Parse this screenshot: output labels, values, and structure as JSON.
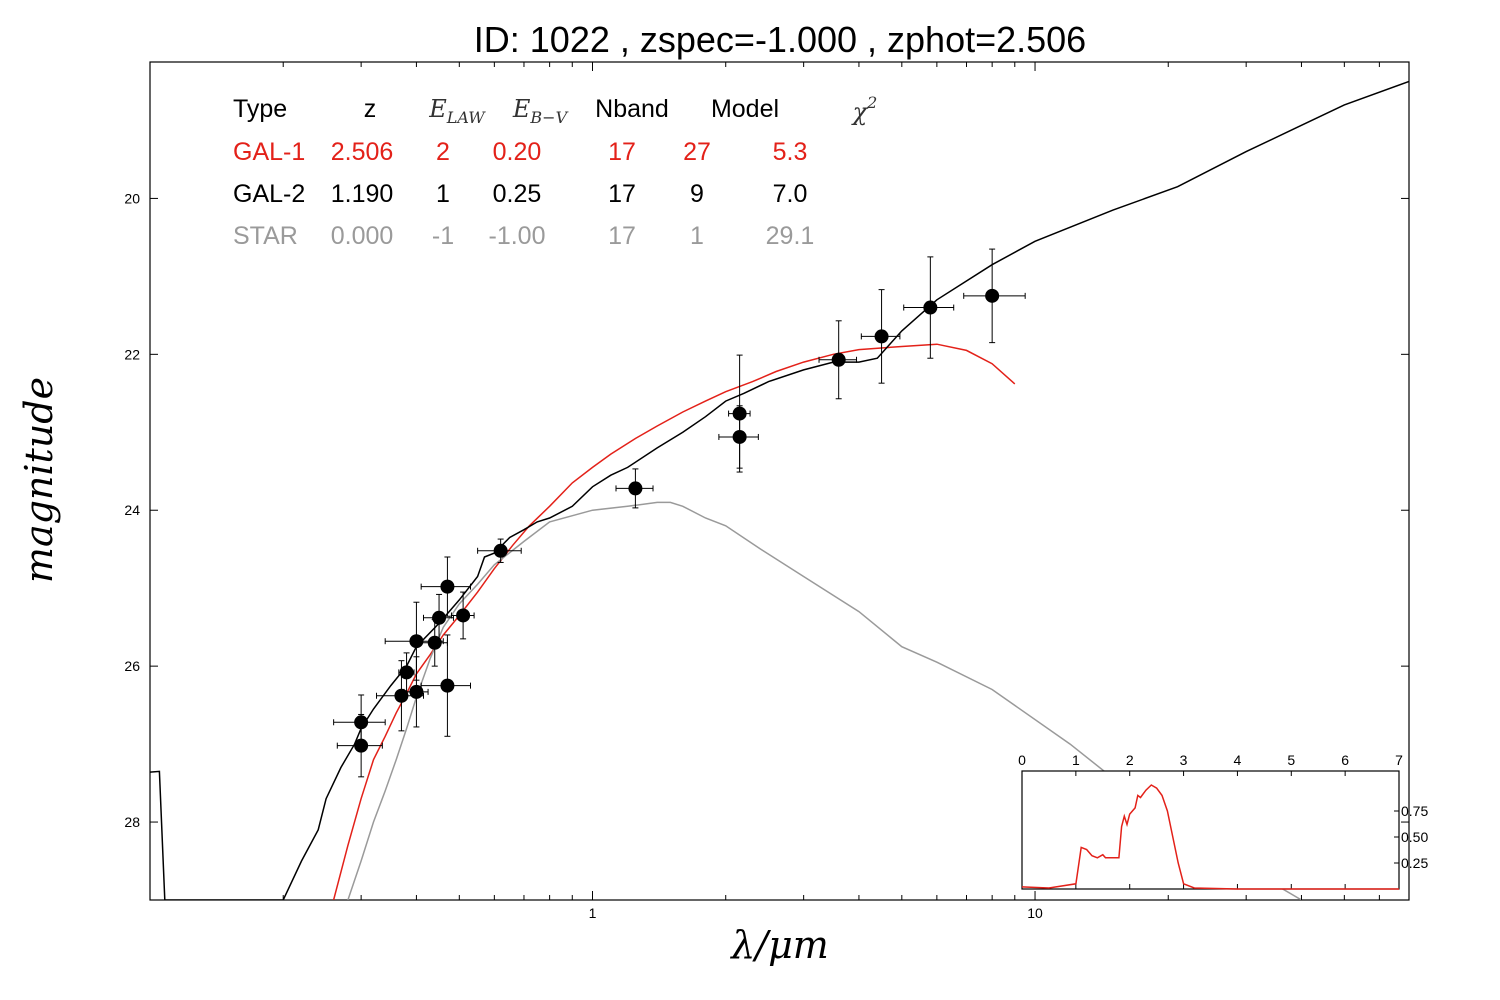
{
  "chart_data": {
    "type": "scatter",
    "title": "ID:  1022  , zspec=-1.000 , zphot=2.506",
    "xlabel": "λ/μm",
    "ylabel": "magnitude",
    "x_scale": "log",
    "xlim": [
      0.1,
      70
    ],
    "ylim": [
      29.0,
      18.25
    ],
    "x_tick_labels": [
      "1",
      "10"
    ],
    "y_ticks": [
      20,
      22,
      24,
      26,
      28
    ],
    "y_tick_labels": [
      "20",
      "22",
      "24",
      "26",
      "28"
    ],
    "grid": false,
    "table": {
      "headers": [
        "Type",
        "z",
        "E_LAW",
        "E_B−V",
        "Nband",
        "Model",
        "χ2"
      ],
      "rows": [
        {
          "cells": [
            "GAL-1",
            "2.506",
            "2",
            "0.20",
            "17",
            "27",
            "5.3"
          ],
          "color": "#e32119"
        },
        {
          "cells": [
            "GAL-2",
            "1.190",
            "1",
            "0.25",
            "17",
            "9",
            "7.0"
          ],
          "color": "#000000"
        },
        {
          "cells": [
            "STAR",
            "0.000",
            "-1",
            "-1.00",
            "17",
            "1",
            "29.1"
          ],
          "color": "#9a9a9a"
        }
      ]
    },
    "points": [
      {
        "x": 0.3,
        "y": 26.72,
        "xerr": [
          0.04,
          0.04
        ],
        "yerr": 0.35
      },
      {
        "x": 0.3,
        "y": 27.02,
        "xerr": [
          0.035,
          0.035
        ],
        "yerr": 0.4
      },
      {
        "x": 0.37,
        "y": 26.38,
        "xerr": [
          0.045,
          0.045
        ],
        "yerr": 0.45
      },
      {
        "x": 0.38,
        "y": 26.08,
        "xerr": [
          0.015,
          0.015
        ],
        "yerr": 0.25
      },
      {
        "x": 0.4,
        "y": 26.33,
        "xerr": [
          0.025,
          0.025
        ],
        "yerr": 0.45
      },
      {
        "x": 0.4,
        "y": 25.68,
        "xerr": [
          0.06,
          0.06
        ],
        "yerr": 0.5
      },
      {
        "x": 0.44,
        "y": 25.7,
        "xerr": [
          0.03,
          0.03
        ],
        "yerr": 0.3
      },
      {
        "x": 0.45,
        "y": 25.38,
        "xerr": [
          0.035,
          0.035
        ],
        "yerr": 0.3
      },
      {
        "x": 0.47,
        "y": 24.98,
        "xerr": [
          0.06,
          0.06
        ],
        "yerr": 0.38
      },
      {
        "x": 0.47,
        "y": 26.25,
        "xerr": [
          0.06,
          0.06
        ],
        "yerr": 0.65
      },
      {
        "x": 0.51,
        "y": 25.35,
        "xerr": [
          0.03,
          0.03
        ],
        "yerr": 0.3
      },
      {
        "x": 0.62,
        "y": 24.52,
        "xerr": [
          0.07,
          0.07
        ],
        "yerr": 0.15
      },
      {
        "x": 1.25,
        "y": 23.72,
        "xerr": [
          0.12,
          0.12
        ],
        "yerr": 0.25
      },
      {
        "x": 2.15,
        "y": 22.76,
        "xerr": [
          0.12,
          0.12
        ],
        "yerr": 0.75
      },
      {
        "x": 2.15,
        "y": 23.06,
        "xerr": [
          0.22,
          0.22
        ],
        "yerr": 0.4
      },
      {
        "x": 3.6,
        "y": 22.07,
        "xerr": [
          0.35,
          0.35
        ],
        "yerr": 0.5
      },
      {
        "x": 4.5,
        "y": 21.77,
        "xerr": [
          0.45,
          0.45
        ],
        "yerr": 0.6
      },
      {
        "x": 5.8,
        "y": 21.4,
        "xerr": [
          0.75,
          0.75
        ],
        "yerr": 0.65
      },
      {
        "x": 8.0,
        "y": 21.25,
        "xerr": [
          1.1,
          1.5
        ],
        "yerr": 0.6
      }
    ],
    "series": [
      {
        "color": "#e32119",
        "x": [
          0.26,
          0.28,
          0.3,
          0.32,
          0.34,
          0.36,
          0.38,
          0.4,
          0.43,
          0.46,
          0.5,
          0.55,
          0.6,
          0.66,
          0.72,
          0.8,
          0.9,
          1.0,
          1.1,
          1.25,
          1.4,
          1.6,
          1.8,
          2.0,
          2.3,
          2.6,
          3.0,
          3.5,
          4.0,
          5.0,
          6.0,
          7.0,
          8.0,
          9.0
        ],
        "y": [
          29.0,
          28.3,
          27.7,
          27.2,
          26.9,
          26.6,
          26.35,
          26.1,
          25.85,
          25.6,
          25.35,
          25.05,
          24.75,
          24.45,
          24.2,
          23.95,
          23.65,
          23.45,
          23.28,
          23.08,
          22.92,
          22.74,
          22.6,
          22.48,
          22.35,
          22.22,
          22.1,
          22.0,
          21.94,
          21.9,
          21.87,
          21.95,
          22.12,
          22.38
        ]
      },
      {
        "color": "#000000",
        "x": [
          0.08,
          0.105,
          0.105,
          0.108,
          0.2,
          0.22,
          0.24,
          0.25,
          0.27,
          0.29,
          0.3,
          0.32,
          0.35,
          0.38,
          0.4,
          0.45,
          0.5,
          0.55,
          0.57,
          0.6,
          0.65,
          0.7,
          0.75,
          0.8,
          0.9,
          1.0,
          1.1,
          1.2,
          1.4,
          1.6,
          1.8,
          2.0,
          2.2,
          2.5,
          3.0,
          3.5,
          4.0,
          4.4,
          5.0,
          6.0,
          8.0,
          10.0,
          15.0,
          21.0,
          30.0,
          50.0,
          70.0
        ],
        "y": [
          27.4,
          27.35,
          27.35,
          29.0,
          29.0,
          28.5,
          28.1,
          27.7,
          27.3,
          27.0,
          26.8,
          26.55,
          26.25,
          26.0,
          25.75,
          25.45,
          25.15,
          24.85,
          24.6,
          24.55,
          24.35,
          24.25,
          24.15,
          24.1,
          23.95,
          23.7,
          23.55,
          23.45,
          23.2,
          23.0,
          22.8,
          22.6,
          22.5,
          22.35,
          22.2,
          22.1,
          22.1,
          22.05,
          21.7,
          21.3,
          20.85,
          20.55,
          20.15,
          19.85,
          19.4,
          18.8,
          18.5
        ]
      },
      {
        "color": "#9a9a9a",
        "x": [
          0.28,
          0.3,
          0.32,
          0.34,
          0.36,
          0.38,
          0.4,
          0.43,
          0.46,
          0.5,
          0.55,
          0.6,
          0.7,
          0.8,
          1.0,
          1.2,
          1.4,
          1.5,
          1.6,
          1.8,
          2.0,
          2.4,
          3.0,
          4.0,
          5.0,
          6.0,
          8.0,
          12.0,
          20.0,
          40.0
        ],
        "y": [
          29.0,
          28.5,
          28.0,
          27.6,
          27.2,
          26.8,
          26.4,
          25.9,
          25.5,
          25.2,
          24.95,
          24.7,
          24.4,
          24.15,
          24.0,
          23.95,
          23.9,
          23.9,
          23.95,
          24.1,
          24.2,
          24.5,
          24.85,
          25.3,
          25.75,
          25.95,
          26.3,
          27.0,
          28.0,
          29.0
        ]
      }
    ],
    "inset": {
      "xlim": [
        0,
        7
      ],
      "x_ticks": [
        0,
        1,
        2,
        3,
        4,
        5,
        6,
        7
      ],
      "y_ticks": [
        0.25,
        0.5,
        0.75
      ],
      "y_tick_labels": [
        "0.25",
        "0.50",
        "0.75"
      ],
      "color": "#e32119",
      "x": [
        0,
        0.5,
        1.0,
        1.1,
        1.2,
        1.3,
        1.4,
        1.5,
        1.55,
        1.6,
        1.8,
        1.85,
        1.9,
        1.95,
        2.0,
        2.1,
        2.15,
        2.2,
        2.3,
        2.4,
        2.5,
        2.6,
        2.7,
        2.8,
        2.9,
        3.0,
        3.2,
        4.0,
        7.0
      ],
      "y": [
        0.02,
        0.01,
        0.05,
        0.4,
        0.38,
        0.32,
        0.3,
        0.33,
        0.3,
        0.3,
        0.3,
        0.6,
        0.7,
        0.62,
        0.72,
        0.78,
        0.9,
        0.88,
        0.95,
        1.0,
        0.97,
        0.9,
        0.75,
        0.5,
        0.25,
        0.05,
        0.01,
        0.0,
        0.0
      ]
    }
  }
}
